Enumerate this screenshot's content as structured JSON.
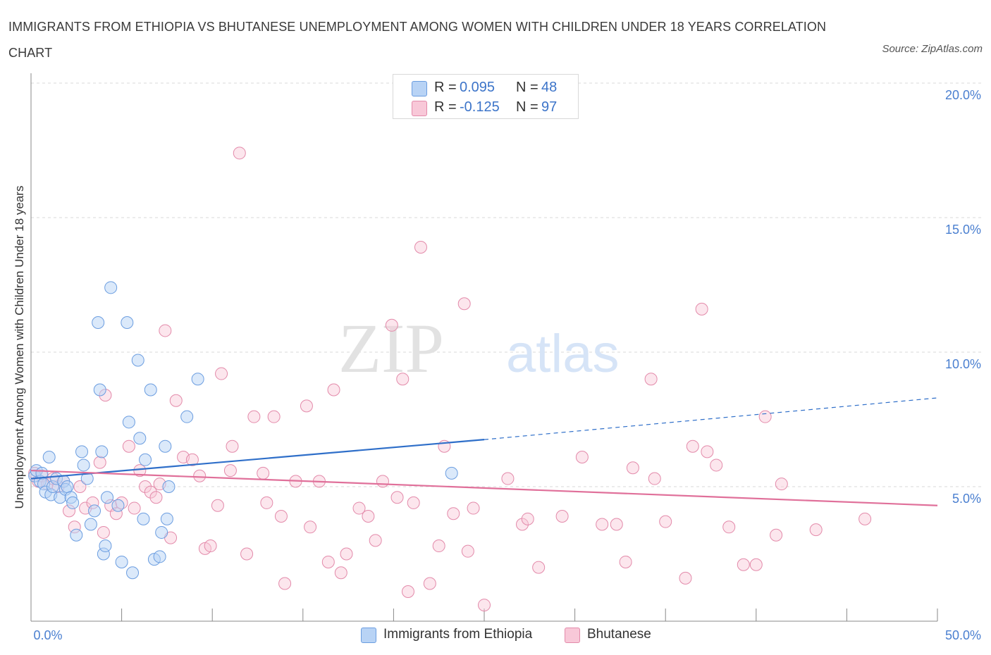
{
  "header": {
    "title": "IMMIGRANTS FROM ETHIOPIA VS BHUTANESE UNEMPLOYMENT AMONG WOMEN WITH CHILDREN UNDER 18 YEARS CORRELATION CHART",
    "source": "Source: ZipAtlas.com"
  },
  "watermark": {
    "part1": "ZIP",
    "part2": "atlas"
  },
  "legend_top": {
    "rows": [
      {
        "r_label": "R =",
        "r_value": "0.095",
        "n_label": "N =",
        "n_value": "48"
      },
      {
        "r_label": "R =",
        "r_value": "-0.125",
        "n_label": "N =",
        "n_value": "97"
      }
    ]
  },
  "legend_bottom": {
    "items": [
      {
        "label": "Immigrants from Ethiopia"
      },
      {
        "label": "Bhutanese"
      }
    ]
  },
  "colors": {
    "ethiopia_fill": "#b8d3f5",
    "ethiopia_stroke": "#6b9de0",
    "ethiopia_line": "#2f6fc9",
    "bhutanese_fill": "#f8c8d8",
    "bhutanese_stroke": "#e38aaa",
    "bhutanese_line": "#e0709a",
    "axis_text": "#4a7fd0",
    "grid": "#d9d9d9"
  },
  "chart_data": {
    "type": "scatter",
    "title": "IMMIGRANTS FROM ETHIOPIA VS BHUTANESE UNEMPLOYMENT AMONG WOMEN WITH CHILDREN UNDER 18 YEARS CORRELATION CHART",
    "xlabel": "",
    "ylabel": "Unemployment Among Women with Children Under 18 years",
    "xlim": [
      0,
      50
    ],
    "ylim": [
      0,
      20
    ],
    "x_tick_labels": [
      "0.0%",
      "50.0%"
    ],
    "y_ticks": [
      5,
      10,
      15,
      20
    ],
    "y_tick_labels": [
      "5.0%",
      "10.0%",
      "15.0%",
      "20.0%"
    ],
    "grid": "horizontal dashed",
    "legend_position": "bottom",
    "series": [
      {
        "name": "Immigrants from Ethiopia",
        "R": 0.095,
        "N": 48,
        "trend": {
          "x0": 0,
          "y0": 5.3,
          "x_solid_end": 25,
          "y_solid_end": 6.75,
          "x1": 50,
          "y1": 8.3
        },
        "points": [
          [
            0.2,
            5.4
          ],
          [
            0.3,
            5.6
          ],
          [
            0.5,
            5.2
          ],
          [
            0.6,
            5.5
          ],
          [
            0.7,
            5.1
          ],
          [
            0.8,
            4.8
          ],
          [
            1.0,
            6.1
          ],
          [
            1.1,
            4.7
          ],
          [
            1.2,
            5.0
          ],
          [
            1.4,
            5.3
          ],
          [
            1.6,
            4.6
          ],
          [
            1.8,
            5.2
          ],
          [
            1.9,
            4.9
          ],
          [
            2.0,
            5.0
          ],
          [
            2.2,
            4.6
          ],
          [
            2.3,
            4.4
          ],
          [
            2.5,
            3.2
          ],
          [
            2.8,
            6.3
          ],
          [
            2.9,
            5.8
          ],
          [
            3.1,
            5.3
          ],
          [
            3.3,
            3.6
          ],
          [
            3.5,
            4.1
          ],
          [
            3.7,
            11.1
          ],
          [
            3.8,
            8.6
          ],
          [
            3.9,
            6.3
          ],
          [
            4.0,
            2.5
          ],
          [
            4.1,
            2.8
          ],
          [
            4.2,
            4.6
          ],
          [
            4.4,
            12.4
          ],
          [
            4.8,
            4.3
          ],
          [
            5.0,
            2.2
          ],
          [
            5.3,
            11.1
          ],
          [
            5.4,
            7.4
          ],
          [
            5.6,
            1.8
          ],
          [
            5.9,
            9.7
          ],
          [
            6.0,
            6.8
          ],
          [
            6.2,
            3.8
          ],
          [
            6.3,
            6.0
          ],
          [
            6.6,
            8.6
          ],
          [
            6.8,
            2.3
          ],
          [
            7.1,
            2.4
          ],
          [
            7.2,
            3.3
          ],
          [
            7.4,
            6.5
          ],
          [
            7.5,
            3.8
          ],
          [
            7.6,
            5.0
          ],
          [
            8.6,
            7.6
          ],
          [
            9.2,
            9.0
          ],
          [
            23.2,
            5.5
          ]
        ]
      },
      {
        "name": "Bhutanese",
        "R": -0.125,
        "N": 97,
        "trend": {
          "x0": 0,
          "y0": 5.6,
          "x1": 50,
          "y1": 4.3
        },
        "points": [
          [
            0.2,
            5.5
          ],
          [
            0.4,
            5.2
          ],
          [
            0.6,
            5.4
          ],
          [
            0.9,
            5.1
          ],
          [
            1.2,
            5.3
          ],
          [
            1.5,
            5.0
          ],
          [
            1.8,
            5.2
          ],
          [
            2.1,
            4.1
          ],
          [
            2.4,
            3.5
          ],
          [
            2.7,
            5.0
          ],
          [
            3.0,
            4.2
          ],
          [
            3.4,
            4.4
          ],
          [
            3.8,
            5.9
          ],
          [
            4.0,
            3.3
          ],
          [
            4.1,
            8.4
          ],
          [
            4.4,
            4.3
          ],
          [
            4.7,
            4.0
          ],
          [
            5.0,
            4.4
          ],
          [
            5.4,
            6.5
          ],
          [
            5.7,
            4.2
          ],
          [
            6.0,
            5.6
          ],
          [
            6.3,
            5.0
          ],
          [
            6.6,
            4.8
          ],
          [
            6.9,
            4.6
          ],
          [
            7.1,
            5.1
          ],
          [
            7.4,
            10.8
          ],
          [
            7.7,
            3.1
          ],
          [
            8.0,
            8.2
          ],
          [
            8.4,
            6.1
          ],
          [
            8.9,
            6.0
          ],
          [
            9.3,
            5.4
          ],
          [
            9.6,
            2.7
          ],
          [
            9.9,
            2.8
          ],
          [
            10.3,
            4.3
          ],
          [
            10.5,
            9.2
          ],
          [
            11.0,
            5.6
          ],
          [
            11.1,
            6.5
          ],
          [
            11.5,
            17.4
          ],
          [
            11.9,
            2.5
          ],
          [
            12.3,
            7.6
          ],
          [
            12.8,
            5.5
          ],
          [
            13.0,
            4.4
          ],
          [
            13.4,
            7.6
          ],
          [
            13.8,
            3.9
          ],
          [
            14.0,
            1.4
          ],
          [
            14.6,
            5.2
          ],
          [
            15.2,
            8.0
          ],
          [
            15.4,
            3.5
          ],
          [
            15.9,
            5.2
          ],
          [
            16.4,
            2.2
          ],
          [
            16.7,
            8.6
          ],
          [
            17.1,
            1.8
          ],
          [
            17.4,
            2.5
          ],
          [
            18.1,
            4.2
          ],
          [
            18.6,
            3.9
          ],
          [
            19.0,
            3.0
          ],
          [
            19.4,
            5.2
          ],
          [
            19.9,
            11.0
          ],
          [
            20.2,
            4.6
          ],
          [
            20.5,
            9.0
          ],
          [
            20.8,
            1.1
          ],
          [
            21.1,
            4.4
          ],
          [
            21.5,
            13.9
          ],
          [
            22.0,
            1.4
          ],
          [
            22.5,
            2.8
          ],
          [
            22.8,
            6.5
          ],
          [
            23.3,
            4.0
          ],
          [
            23.9,
            11.8
          ],
          [
            24.1,
            2.6
          ],
          [
            24.4,
            4.2
          ],
          [
            25.0,
            0.6
          ],
          [
            26.3,
            5.3
          ],
          [
            27.1,
            3.6
          ],
          [
            27.4,
            3.8
          ],
          [
            28.0,
            2.0
          ],
          [
            29.3,
            3.9
          ],
          [
            30.4,
            6.1
          ],
          [
            31.5,
            3.6
          ],
          [
            32.3,
            3.6
          ],
          [
            32.8,
            2.2
          ],
          [
            33.2,
            5.7
          ],
          [
            34.2,
            9.0
          ],
          [
            34.4,
            5.3
          ],
          [
            35.0,
            3.7
          ],
          [
            36.1,
            1.6
          ],
          [
            36.5,
            6.5
          ],
          [
            37.0,
            11.6
          ],
          [
            37.3,
            6.3
          ],
          [
            37.8,
            5.8
          ],
          [
            38.5,
            3.5
          ],
          [
            39.3,
            2.1
          ],
          [
            40.0,
            2.1
          ],
          [
            40.5,
            7.6
          ],
          [
            41.1,
            3.2
          ],
          [
            41.4,
            5.1
          ],
          [
            43.3,
            3.4
          ],
          [
            46.0,
            3.8
          ]
        ]
      }
    ]
  }
}
